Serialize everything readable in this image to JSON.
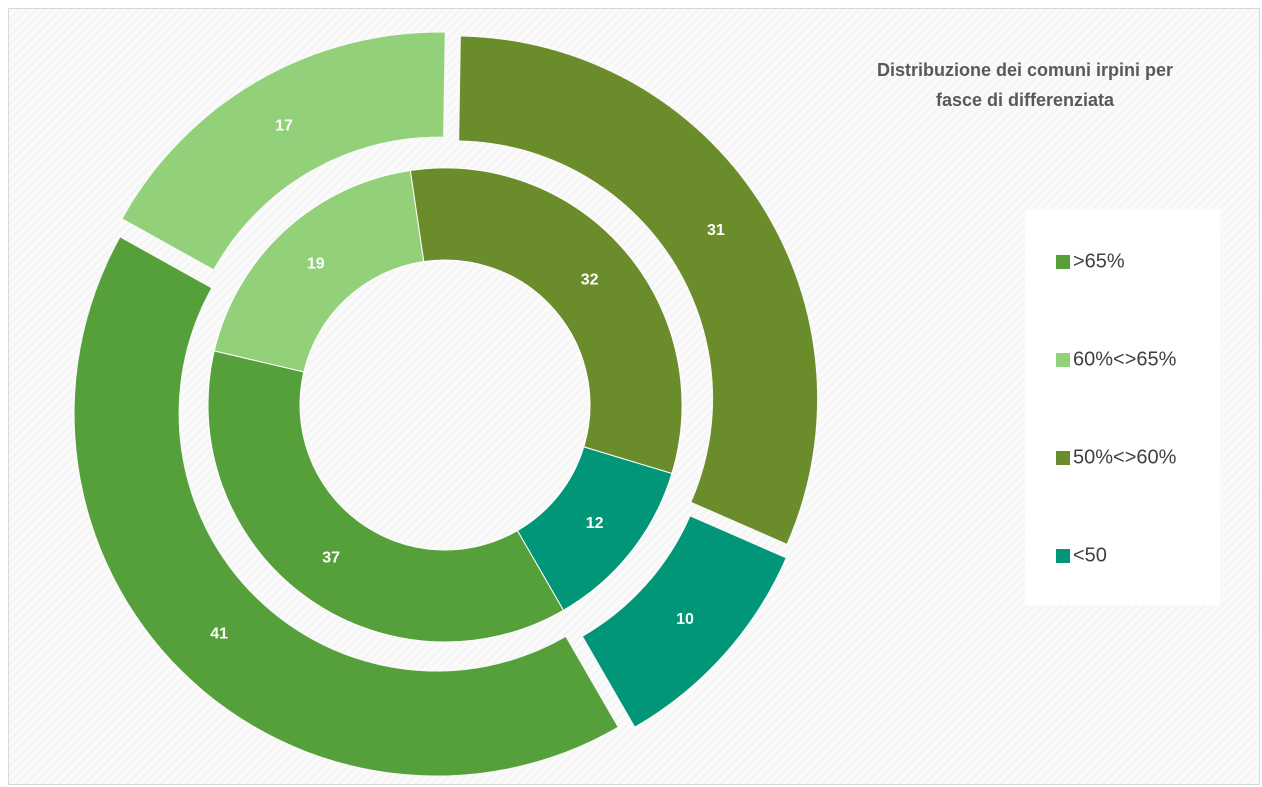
{
  "chart_data": {
    "type": "doughnut",
    "title": "Distribuzione dei comuni irpini per fasce di differenziata",
    "categories": [
      ">65%",
      "60%<>65%",
      "50%<>60%",
      "<50"
    ],
    "colors": [
      "#55a03a",
      "#92d07a",
      "#6b8c2a",
      "#009677"
    ],
    "first_slice_angle": 150,
    "series": [
      {
        "values": [
          37,
          19,
          32,
          12
        ]
      },
      {
        "values": [
          41,
          17,
          31,
          10
        ],
        "exploded": true
      }
    ],
    "legend": "right"
  }
}
